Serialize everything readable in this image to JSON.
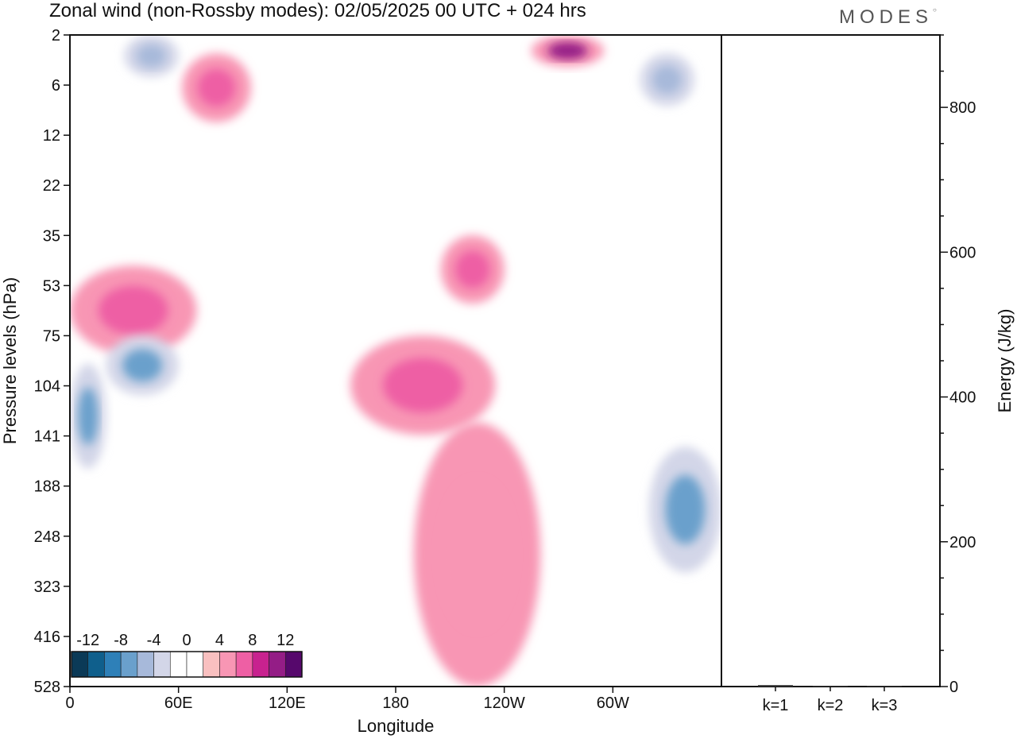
{
  "header": {
    "title": "Zonal wind (non-Rossby modes):  02/05/2025  00 UTC  + 024 hrs",
    "brand": "MODES"
  },
  "chart_data": [
    {
      "type": "heatmap",
      "title": "Zonal wind (non-Rossby modes):  02/05/2025  00 UTC  + 024 hrs",
      "xlabel": "Longitude",
      "ylabel": "Pressure levels (hPa)",
      "x_ticks": [
        "0",
        "60E",
        "120E",
        "180",
        "120W",
        "60W"
      ],
      "y_ticks": [
        "2",
        "6",
        "12",
        "22",
        "35",
        "53",
        "75",
        "104",
        "141",
        "188",
        "248",
        "323",
        "416",
        "528"
      ],
      "colorbar": {
        "labels": [
          "-12",
          "-8",
          "-4",
          "0",
          "4",
          "8",
          "12"
        ],
        "colors": [
          "#0b3a57",
          "#0f5f8c",
          "#2e80b8",
          "#6aa0cc",
          "#a7b9da",
          "#d3d6e8",
          "#ffffff",
          "#ffffff",
          "#f9c0c0",
          "#f896b4",
          "#ee5fa4",
          "#c8228f",
          "#941d86",
          "#56086c"
        ]
      },
      "features": [
        {
          "sign": "positive",
          "lon": [
            62,
            100
          ],
          "level": [
            3,
            10
          ],
          "magnitude": 6
        },
        {
          "sign": "positive",
          "lon": [
            0,
            70
          ],
          "level": [
            45,
            85
          ],
          "magnitude": 6
        },
        {
          "sign": "positive",
          "lon": [
            155,
            235
          ],
          "level": [
            75,
            140
          ],
          "magnitude": 6
        },
        {
          "sign": "positive",
          "lon": [
            205,
            240
          ],
          "level": [
            35,
            60
          ],
          "magnitude": 6
        },
        {
          "sign": "positive",
          "lon": [
            255,
            295
          ],
          "level": [
            2,
            4
          ],
          "magnitude": 10
        },
        {
          "sign": "positive",
          "lon": [
            190,
            260
          ],
          "level": [
            130,
            528
          ],
          "magnitude": 4
        },
        {
          "sign": "negative",
          "lon": [
            0,
            20
          ],
          "level": [
            90,
            170
          ],
          "magnitude": -8
        },
        {
          "sign": "negative",
          "lon": [
            20,
            60
          ],
          "level": [
            75,
            110
          ],
          "magnitude": -8
        },
        {
          "sign": "negative",
          "lon": [
            30,
            60
          ],
          "level": [
            2,
            5
          ],
          "magnitude": -6
        },
        {
          "sign": "negative",
          "lon": [
            320,
            360
          ],
          "level": [
            150,
            300
          ],
          "magnitude": -8
        },
        {
          "sign": "negative",
          "lon": [
            315,
            345
          ],
          "level": [
            3,
            8
          ],
          "magnitude": -6
        }
      ]
    },
    {
      "type": "bar",
      "categories": [
        "k=1",
        "k=2",
        "k=3"
      ],
      "values": [
        2,
        1,
        1
      ],
      "ylabel": "Energy (J/kg)",
      "ylim": [
        0,
        900
      ],
      "y_ticks": [
        0,
        200,
        400,
        600,
        800
      ]
    }
  ]
}
